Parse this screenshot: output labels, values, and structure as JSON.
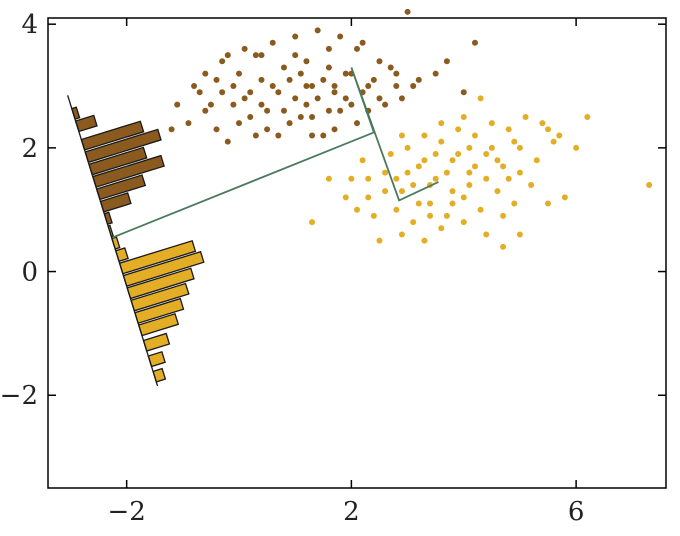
{
  "chart_data": {
    "type": "scatter",
    "title": "",
    "xlabel": "",
    "ylabel": "",
    "xlim": [
      -3.4,
      7.6
    ],
    "ylim": [
      -3.5,
      4.1
    ],
    "x_ticks": [
      -2,
      2,
      6
    ],
    "y_ticks": [
      -2,
      0,
      2,
      4
    ],
    "x_tick_labels": [
      "−2",
      "2",
      "6"
    ],
    "y_tick_labels": [
      "−2",
      "0",
      "2",
      "4"
    ],
    "grid": false,
    "legend": "none",
    "colors": {
      "dark_cluster": "#8B5A1E",
      "light_cluster": "#E3AE25",
      "dark_bars": "#8B5A1E",
      "light_bars": "#E3AE25",
      "path_line": "#4A7A5C",
      "axis": "#000000"
    },
    "series": [
      {
        "color_key": "dark_cluster",
        "points": [
          [
            -0.2,
            3.5
          ],
          [
            0.1,
            3.6
          ],
          [
            0.3,
            3.5
          ],
          [
            0.6,
            3.7
          ],
          [
            1.0,
            3.8
          ],
          [
            1.4,
            3.9
          ],
          [
            1.8,
            3.8
          ],
          [
            2.1,
            3.6
          ],
          [
            2.5,
            3.4
          ],
          [
            0.8,
            3.3
          ],
          [
            1.2,
            3.4
          ],
          [
            1.6,
            3.3
          ],
          [
            0.0,
            3.2
          ],
          [
            -0.4,
            3.1
          ],
          [
            0.4,
            3.1
          ],
          [
            1.1,
            3.2
          ],
          [
            1.9,
            3.2
          ],
          [
            2.4,
            3.1
          ],
          [
            2.8,
            3.0
          ],
          [
            -0.7,
            2.9
          ],
          [
            -0.3,
            2.9
          ],
          [
            0.2,
            2.9
          ],
          [
            0.6,
            3.0
          ],
          [
            1.3,
            3.0
          ],
          [
            1.7,
            2.9
          ],
          [
            2.2,
            2.9
          ],
          [
            3.1,
            3.0
          ],
          [
            -1.1,
            2.7
          ],
          [
            -0.6,
            2.6
          ],
          [
            -0.1,
            2.7
          ],
          [
            0.4,
            2.7
          ],
          [
            0.8,
            2.6
          ],
          [
            1.2,
            2.7
          ],
          [
            1.6,
            2.6
          ],
          [
            2.0,
            2.7
          ],
          [
            2.6,
            2.7
          ],
          [
            -0.9,
            2.4
          ],
          [
            -0.4,
            2.3
          ],
          [
            0.0,
            2.4
          ],
          [
            0.5,
            2.3
          ],
          [
            0.9,
            2.4
          ],
          [
            1.3,
            2.5
          ],
          [
            1.7,
            2.3
          ],
          [
            -0.2,
            2.1
          ],
          [
            0.7,
            2.2
          ],
          [
            1.5,
            2.2
          ],
          [
            2.1,
            2.4
          ],
          [
            -1.2,
            2.3
          ],
          [
            -0.5,
            2.7
          ],
          [
            0.2,
            2.5
          ],
          [
            1.0,
            2.8
          ],
          [
            1.4,
            2.8
          ],
          [
            1.8,
            2.6
          ],
          [
            2.3,
            2.6
          ],
          [
            2.9,
            2.8
          ],
          [
            0.3,
            2.2
          ],
          [
            1.1,
            2.5
          ],
          [
            -0.8,
            3.0
          ],
          [
            0.9,
            3.1
          ],
          [
            1.5,
            3.1
          ],
          [
            2.7,
            3.3
          ],
          [
            3.2,
            3.1
          ],
          [
            3.7,
            3.4
          ],
          [
            3.0,
            4.2
          ],
          [
            4.2,
            3.7
          ],
          [
            1.0,
            3.5
          ],
          [
            0.1,
            2.8
          ],
          [
            1.9,
            2.8
          ],
          [
            -0.6,
            3.2
          ],
          [
            1.3,
            2.2
          ],
          [
            0.4,
            3.5
          ],
          [
            2.3,
            3.0
          ],
          [
            1.6,
            3.6
          ],
          [
            2.0,
            3.2
          ],
          [
            2.5,
            2.8
          ],
          [
            -0.1,
            3.0
          ],
          [
            0.7,
            2.9
          ],
          [
            1.2,
            3.0
          ],
          [
            3.5,
            3.2
          ],
          [
            2.8,
            3.2
          ],
          [
            -0.3,
            3.4
          ],
          [
            0.5,
            2.6
          ],
          [
            1.7,
            3.0
          ],
          [
            2.2,
            3.7
          ],
          [
            4.0,
            2.9
          ]
        ]
      },
      {
        "color_key": "light_cluster",
        "points": [
          [
            2.0,
            1.5
          ],
          [
            2.3,
            1.2
          ],
          [
            2.6,
            1.6
          ],
          [
            2.9,
            1.3
          ],
          [
            3.2,
            1.7
          ],
          [
            3.5,
            1.5
          ],
          [
            3.8,
            1.8
          ],
          [
            4.1,
            1.6
          ],
          [
            4.4,
            1.9
          ],
          [
            4.7,
            1.7
          ],
          [
            5.0,
            2.0
          ],
          [
            5.3,
            1.8
          ],
          [
            5.6,
            2.1
          ],
          [
            2.4,
            0.9
          ],
          [
            2.8,
            1.0
          ],
          [
            3.1,
            0.8
          ],
          [
            3.4,
            1.1
          ],
          [
            3.7,
            0.9
          ],
          [
            4.0,
            1.2
          ],
          [
            4.3,
            1.0
          ],
          [
            4.6,
            1.3
          ],
          [
            4.9,
            1.1
          ],
          [
            2.7,
            1.9
          ],
          [
            3.0,
            2.0
          ],
          [
            3.3,
            2.2
          ],
          [
            3.6,
            2.1
          ],
          [
            3.9,
            2.3
          ],
          [
            4.2,
            2.2
          ],
          [
            4.5,
            2.4
          ],
          [
            4.8,
            2.3
          ],
          [
            5.1,
            2.5
          ],
          [
            5.4,
            2.4
          ],
          [
            5.7,
            2.2
          ],
          [
            6.0,
            2.0
          ],
          [
            6.2,
            2.5
          ],
          [
            7.3,
            1.4
          ],
          [
            2.5,
            0.5
          ],
          [
            2.9,
            0.6
          ],
          [
            3.3,
            0.5
          ],
          [
            3.6,
            0.7
          ],
          [
            4.0,
            0.8
          ],
          [
            4.4,
            0.6
          ],
          [
            4.7,
            0.4
          ],
          [
            5.0,
            0.6
          ],
          [
            3.1,
            1.4
          ],
          [
            3.5,
            1.9
          ],
          [
            3.8,
            1.3
          ],
          [
            4.2,
            1.7
          ],
          [
            4.5,
            2.0
          ],
          [
            4.8,
            1.5
          ],
          [
            5.2,
            1.4
          ],
          [
            5.5,
            1.1
          ],
          [
            5.8,
            1.2
          ],
          [
            1.6,
            1.5
          ],
          [
            1.9,
            1.2
          ],
          [
            2.2,
            1.8
          ],
          [
            2.6,
            1.3
          ],
          [
            3.0,
            1.6
          ],
          [
            3.4,
            1.4
          ],
          [
            3.7,
            1.6
          ],
          [
            4.1,
            1.4
          ],
          [
            4.4,
            1.5
          ],
          [
            4.0,
            2.5
          ],
          [
            3.6,
            2.4
          ],
          [
            4.3,
            2.8
          ],
          [
            3.2,
            1.1
          ],
          [
            2.8,
            1.5
          ],
          [
            1.3,
            0.8
          ],
          [
            2.1,
            1.0
          ],
          [
            4.6,
            1.8
          ],
          [
            5.0,
            1.6
          ],
          [
            3.9,
            1.9
          ],
          [
            3.3,
            1.8
          ],
          [
            2.9,
            2.2
          ],
          [
            4.1,
            2.0
          ],
          [
            4.9,
            2.1
          ],
          [
            5.5,
            2.3
          ],
          [
            3.4,
            0.9
          ],
          [
            3.8,
            1.1
          ],
          [
            2.3,
            1.5
          ],
          [
            4.7,
            0.9
          ]
        ]
      }
    ],
    "path_line": [
      [
        -2.25,
        0.55
      ],
      [
        2.4,
        2.25
      ],
      [
        2.0,
        3.3
      ],
      [
        2.85,
        1.15
      ],
      [
        3.55,
        1.45
      ]
    ],
    "histogram_axis": [
      [
        -3.05,
        2.85
      ],
      [
        -1.45,
        -1.85
      ]
    ],
    "histograms": [
      {
        "color_key": "dark_bars",
        "bars": [
          {
            "y": 2.55,
            "value": 0.05
          },
          {
            "y": 2.35,
            "value": 0.2
          },
          {
            "y": 2.05,
            "value": 0.65
          },
          {
            "y": 1.85,
            "value": 0.8
          },
          {
            "y": 1.65,
            "value": 0.6
          },
          {
            "y": 1.45,
            "value": 0.75
          },
          {
            "y": 1.25,
            "value": 0.5
          },
          {
            "y": 1.05,
            "value": 0.3
          },
          {
            "y": 0.85,
            "value": 0.05
          }
        ]
      },
      {
        "color_key": "light_bars",
        "bars": [
          {
            "y": 0.65,
            "value": 0.02
          },
          {
            "y": 0.45,
            "value": 0.05
          },
          {
            "y": 0.25,
            "value": 0.1
          },
          {
            "y": 0.05,
            "value": 0.8
          },
          {
            "y": -0.15,
            "value": 0.85
          },
          {
            "y": -0.35,
            "value": 0.7
          },
          {
            "y": -0.55,
            "value": 0.6
          },
          {
            "y": -0.75,
            "value": 0.5
          },
          {
            "y": -0.95,
            "value": 0.4
          },
          {
            "y": -1.2,
            "value": 0.25
          },
          {
            "y": -1.45,
            "value": 0.15
          },
          {
            "y": -1.7,
            "value": 0.1
          }
        ]
      }
    ]
  }
}
